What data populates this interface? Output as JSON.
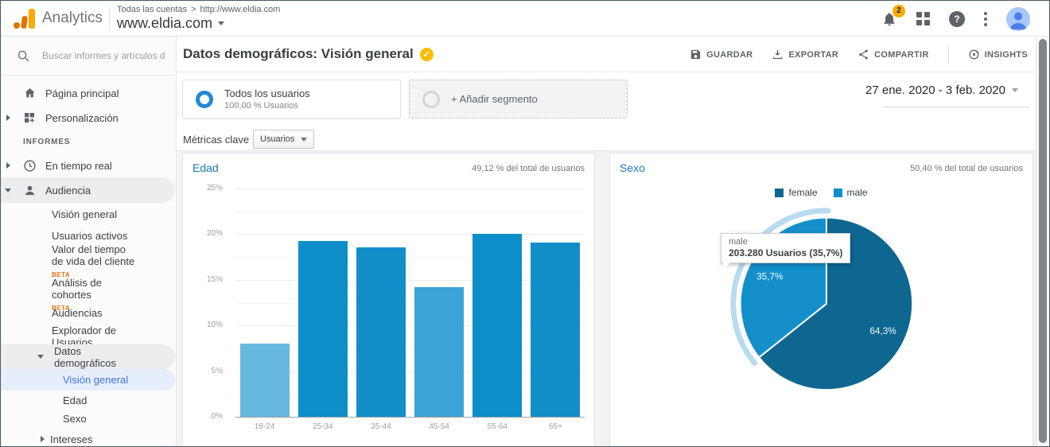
{
  "topbar": {
    "brand": "Analytics",
    "breadcrumb_account": "Todas las cuentas",
    "breadcrumb_sep": ">",
    "breadcrumb_url": "http://www.eldia.com",
    "property_name": "www.eldia.com",
    "notification_count": "2",
    "help_glyph": "?"
  },
  "sidebar": {
    "search_placeholder": "Buscar informes y artículos de",
    "home": "Página principal",
    "personalization": "Personalización",
    "section_label": "INFORMES",
    "realtime": "En tiempo real",
    "audience": "Audiencia",
    "audience_children": {
      "overview": "Visión general",
      "active_users": "Usuarios activos",
      "ltv_line1": "Valor del tiempo",
      "ltv_line2": "de vida del cliente",
      "beta": "BETA",
      "cohort_line1": "Análisis de",
      "cohort_line2": "cohortes",
      "audiences": "Audiencias",
      "user_explorer_line1": "Explorador de",
      "user_explorer_line2": "Usuarios",
      "demographics_line1": "Datos",
      "demographics_line2": "demográficos",
      "demo_overview": "Visión general",
      "age": "Edad",
      "gender": "Sexo",
      "interests": "Intereses"
    }
  },
  "report": {
    "title": "Datos demográficos: Visión general",
    "badge_glyph": "✓",
    "actions": {
      "save": "GUARDAR",
      "export": "EXPORTAR",
      "share": "COMPARTIR",
      "insights": "INSIGHTS"
    },
    "segments": {
      "all_users_title": "Todos los usuarios",
      "all_users_subtitle": "100,00 % Usuarios",
      "add_segment": "+ Añadir segmento"
    },
    "date_range": "27 ene. 2020 - 3 feb. 2020",
    "metrics_label": "Métricas clave",
    "metrics_selected": "Usuarios"
  },
  "colors": {
    "accent_blue": "#2287d6",
    "active_nav_blue": "#4272d9",
    "chart_title_blue": "#1b79c0",
    "beta_orange": "#e8710a",
    "badge_yellow": "#f9ab00"
  },
  "chart_data": [
    {
      "type": "bar",
      "title": "Edad",
      "note": "49,12 % del total de usuarios",
      "categories": [
        "18-24",
        "25-34",
        "35-44",
        "45-54",
        "55-64",
        "65+"
      ],
      "values": [
        8.1,
        19.3,
        18.6,
        14.3,
        20.1,
        19.2
      ],
      "unit": "%",
      "bar_colors": [
        "#67b8df",
        "#0d8ec9",
        "#128fc9",
        "#3ba3d6",
        "#0d8ec9",
        "#118dc7"
      ],
      "ylim": [
        0,
        25
      ],
      "yticks": [
        "0%",
        "5%",
        "10%",
        "15%",
        "20%",
        "25%"
      ],
      "grid": true,
      "legend_position": "none"
    },
    {
      "type": "pie",
      "title": "Sexo",
      "note": "50,40 % del total de usuarios",
      "legend_position": "top",
      "segments": [
        {
          "name": "female",
          "value": 64.3,
          "label": "64,3%",
          "color": "#0d6791"
        },
        {
          "name": "male",
          "value": 35.7,
          "label": "35,7%",
          "color": "#148fca",
          "highlighted": true
        }
      ],
      "highlight_color": "#b8dbef",
      "tooltip": {
        "title": "male",
        "text": "203.280 Usuarios (35,7%)"
      }
    }
  ]
}
